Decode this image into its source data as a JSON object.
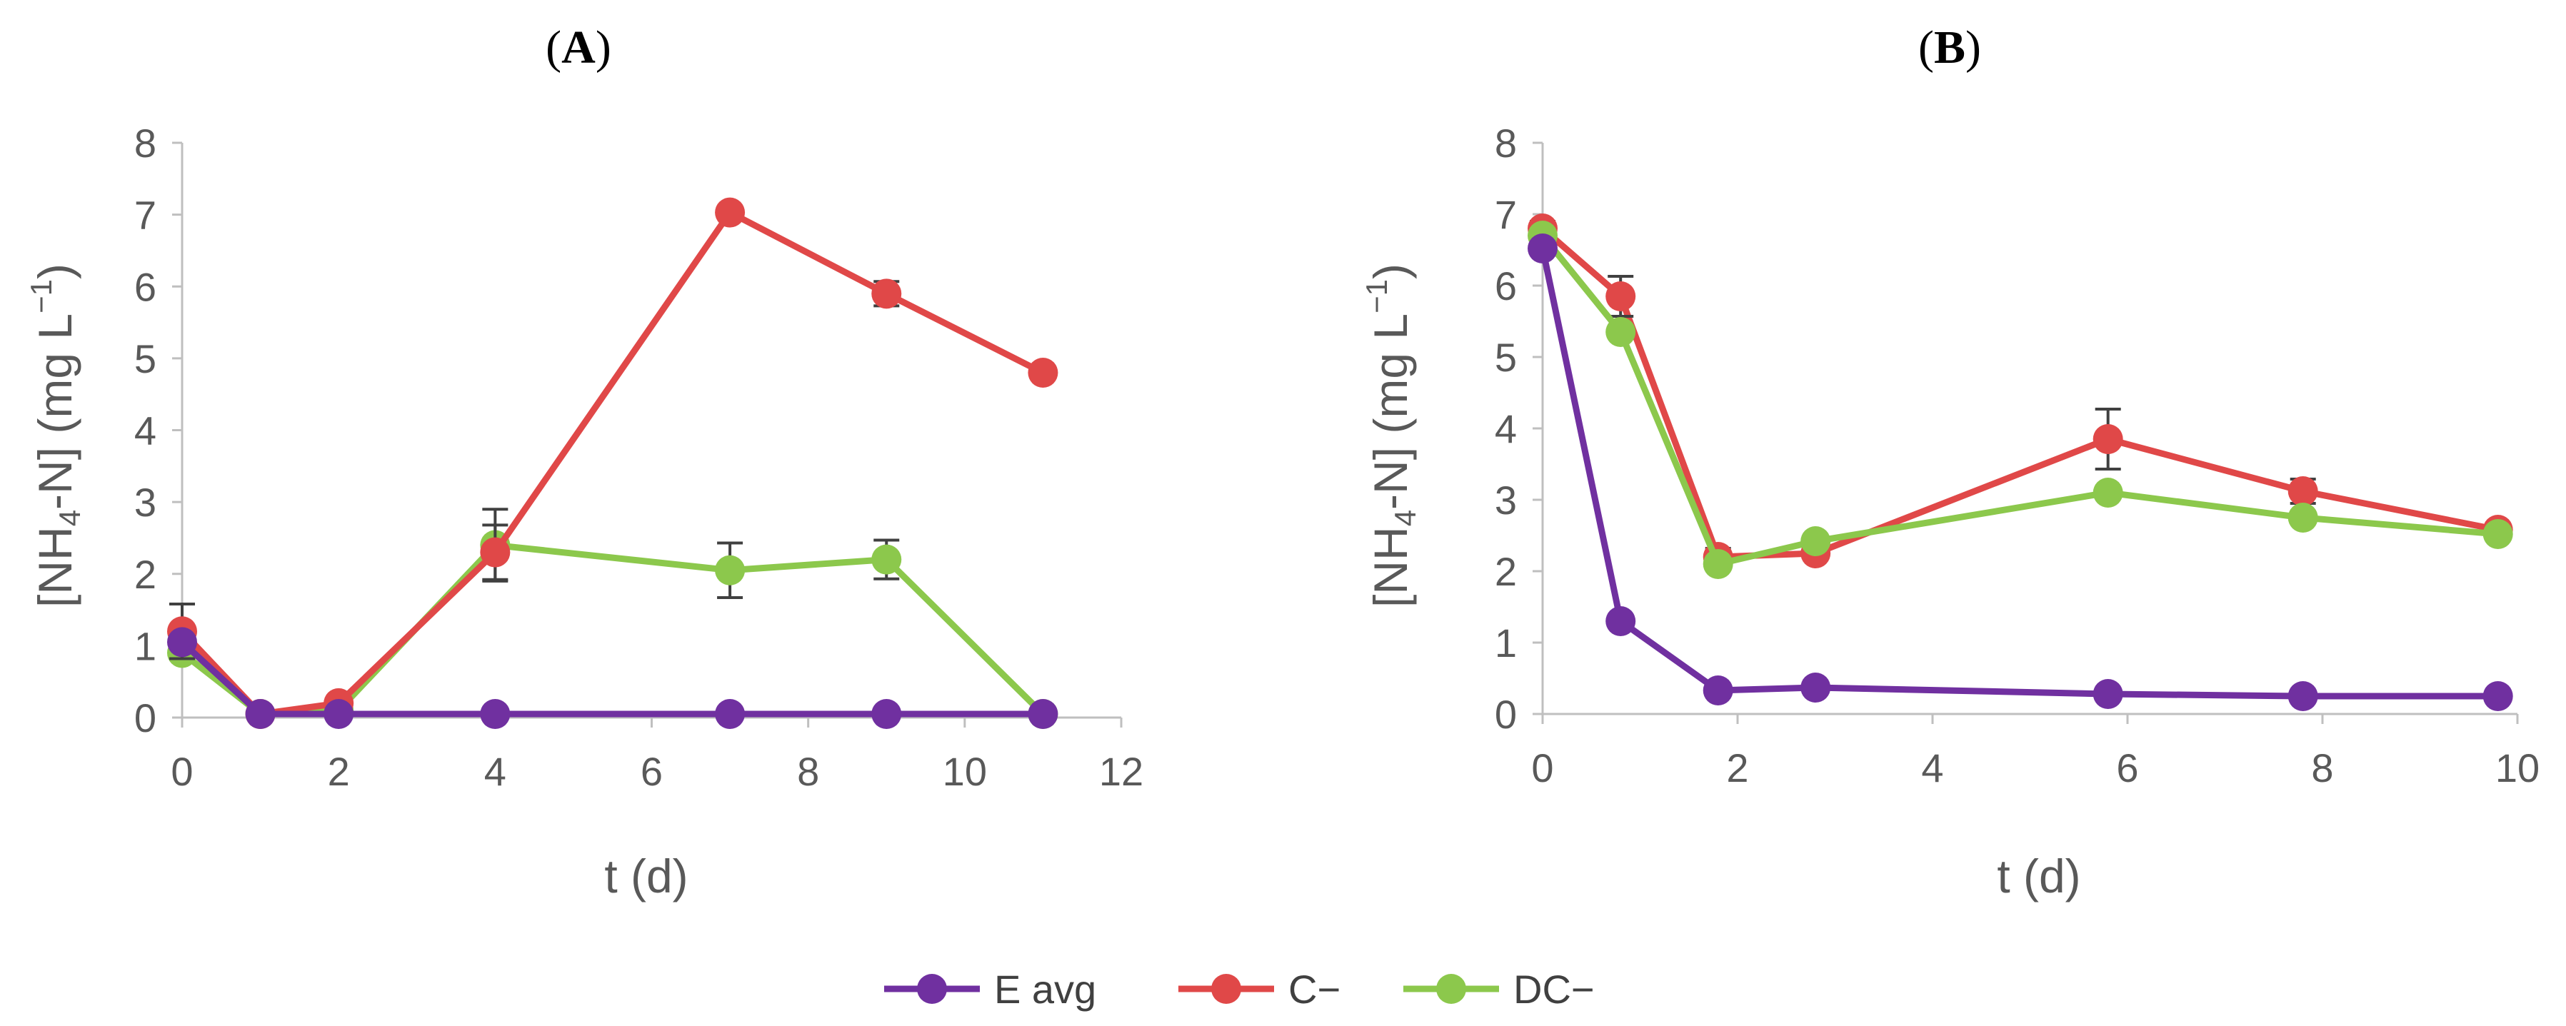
{
  "legend": [
    {
      "name": "E avg",
      "color": "#7030a0"
    },
    {
      "name": "C−",
      "color": "#e04848"
    },
    {
      "name": "DC−",
      "color": "#8cc84c"
    }
  ],
  "chart_data": [
    {
      "type": "line",
      "panel_label": "A",
      "title_open": "(",
      "title_close": ")",
      "xlabel": "t (d)",
      "ylabel": {
        "prefix": "[NH",
        "sub": "4",
        "mid": "-N] (mg L",
        "sup": "−1",
        "suffix": ")"
      },
      "xlim": [
        0,
        12
      ],
      "ylim": [
        0,
        8
      ],
      "xticks": [
        0,
        2,
        4,
        6,
        8,
        10,
        12
      ],
      "yticks": [
        0,
        1,
        2,
        3,
        4,
        5,
        6,
        7,
        8
      ],
      "series": [
        {
          "name": "DC−",
          "color": "#8cc84c",
          "x": [
            0,
            1,
            2,
            4,
            7,
            9,
            11
          ],
          "y": [
            0.9,
            0.05,
            0.1,
            2.4,
            2.05,
            2.2,
            0.05
          ],
          "err": [
            0,
            0,
            0,
            0.5,
            0.38,
            0.27,
            0
          ]
        },
        {
          "name": "C−",
          "color": "#e04848",
          "x": [
            0,
            1,
            2,
            4,
            7,
            9,
            11
          ],
          "y": [
            1.2,
            0.05,
            0.2,
            2.3,
            7.03,
            5.9,
            4.8
          ],
          "err": [
            0.38,
            0,
            0,
            0.38,
            0,
            0.17,
            0
          ]
        },
        {
          "name": "E avg",
          "color": "#7030a0",
          "x": [
            0,
            1,
            2,
            4,
            7,
            9,
            11
          ],
          "y": [
            1.05,
            0.05,
            0.05,
            0.05,
            0.05,
            0.05,
            0.05
          ],
          "err": [
            0,
            0,
            0,
            0,
            0,
            0,
            0
          ]
        }
      ]
    },
    {
      "type": "line",
      "panel_label": "B",
      "title_open": "(",
      "title_close": ")",
      "xlabel": "t (d)",
      "ylabel": {
        "prefix": "[NH",
        "sub": "4",
        "mid": "-N] (mg L",
        "sup": "−1",
        "suffix": ")"
      },
      "xlim": [
        0,
        10
      ],
      "ylim": [
        0,
        8
      ],
      "xticks": [
        0,
        2,
        4,
        6,
        8,
        10
      ],
      "yticks": [
        0,
        1,
        2,
        3,
        4,
        5,
        6,
        7,
        8
      ],
      "series": [
        {
          "name": "C−",
          "color": "#e04848",
          "x": [
            0,
            0.8,
            1.8,
            2.8,
            5.8,
            7.8,
            9.8
          ],
          "y": [
            6.8,
            5.85,
            2.2,
            2.25,
            3.85,
            3.12,
            2.58
          ],
          "err": [
            0.1,
            0.28,
            0.12,
            0,
            0.42,
            0.17,
            0
          ]
        },
        {
          "name": "DC−",
          "color": "#8cc84c",
          "x": [
            0,
            0.8,
            1.8,
            2.8,
            5.8,
            7.8,
            9.8
          ],
          "y": [
            6.7,
            5.35,
            2.1,
            2.42,
            3.1,
            2.75,
            2.52
          ],
          "err": [
            0,
            0,
            0,
            0,
            0,
            0,
            0
          ]
        },
        {
          "name": "E avg",
          "color": "#7030a0",
          "x": [
            0,
            0.8,
            1.8,
            2.8,
            5.8,
            7.8,
            9.8
          ],
          "y": [
            6.52,
            1.3,
            0.33,
            0.37,
            0.28,
            0.25,
            0.25
          ],
          "err": [
            0,
            0,
            0,
            0,
            0,
            0,
            0
          ]
        }
      ]
    }
  ]
}
